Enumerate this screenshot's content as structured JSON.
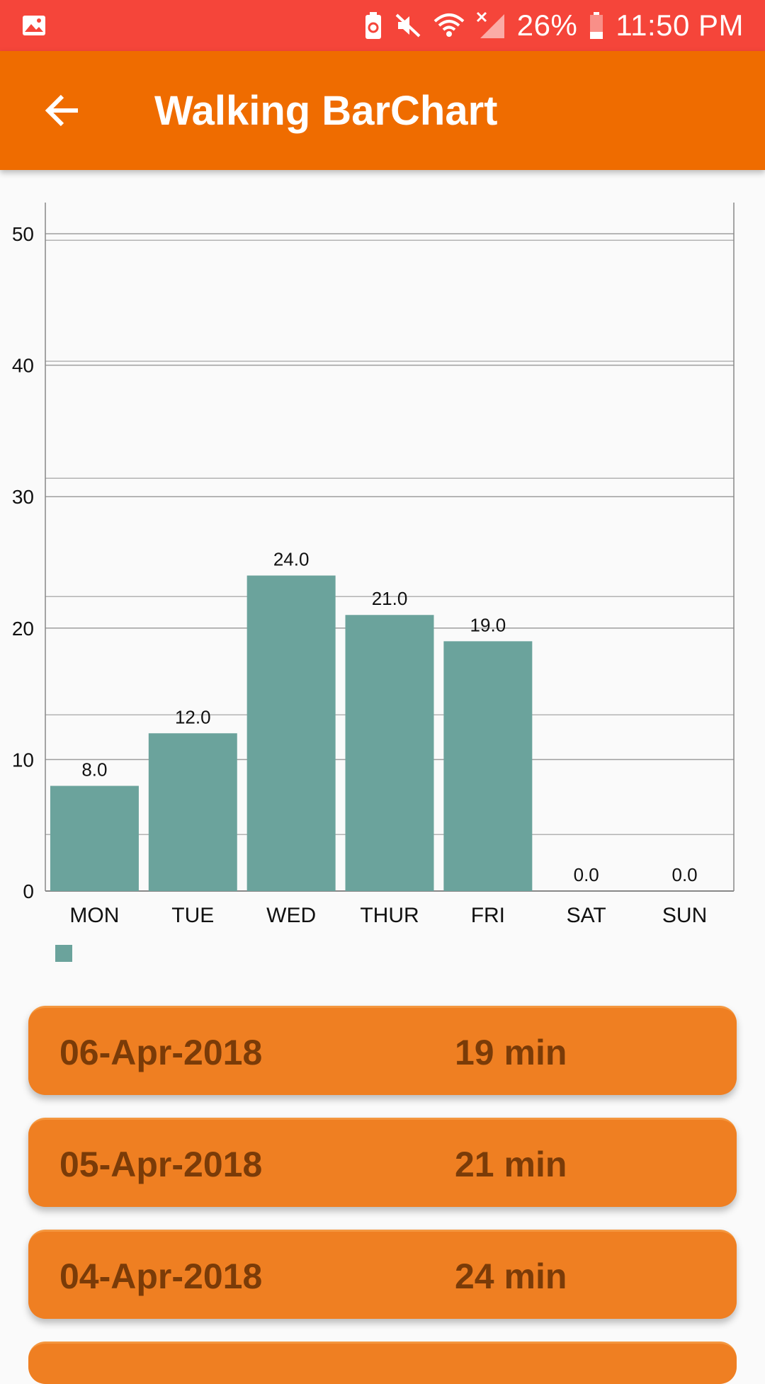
{
  "status_bar": {
    "battery": "26%",
    "time": "11:50 PM",
    "icons": [
      "image-icon",
      "battery-saver-icon",
      "mute-icon",
      "wifi-icon",
      "no-signal-icon",
      "battery-icon"
    ]
  },
  "app_bar": {
    "title": "Walking BarChart",
    "back_icon": "arrow-left-icon"
  },
  "colors": {
    "status_bar": "#f5453a",
    "app_bar": "#ef6c00",
    "bar": "#6ba39c",
    "list_item": "#ef7f22",
    "list_text": "#7a3b08"
  },
  "chart_data": {
    "type": "bar",
    "categories": [
      "MON",
      "TUE",
      "WED",
      "THUR",
      "FRI",
      "SAT",
      "SUN"
    ],
    "values": [
      8.0,
      12.0,
      24.0,
      21.0,
      19.0,
      0.0,
      0.0
    ],
    "value_labels": [
      "8.0",
      "12.0",
      "24.0",
      "21.0",
      "19.0",
      "0.0",
      "0.0"
    ],
    "y_ticks": [
      "0",
      "10",
      "20",
      "30",
      "40",
      "50"
    ],
    "ylim": [
      0,
      50
    ],
    "grid": true,
    "legend": "bottom-left",
    "title": "",
    "xlabel": "",
    "ylabel": ""
  },
  "list": [
    {
      "date": "06-Apr-2018",
      "duration": "19 min"
    },
    {
      "date": "05-Apr-2018",
      "duration": "21 min"
    },
    {
      "date": "04-Apr-2018",
      "duration": "24 min"
    }
  ]
}
